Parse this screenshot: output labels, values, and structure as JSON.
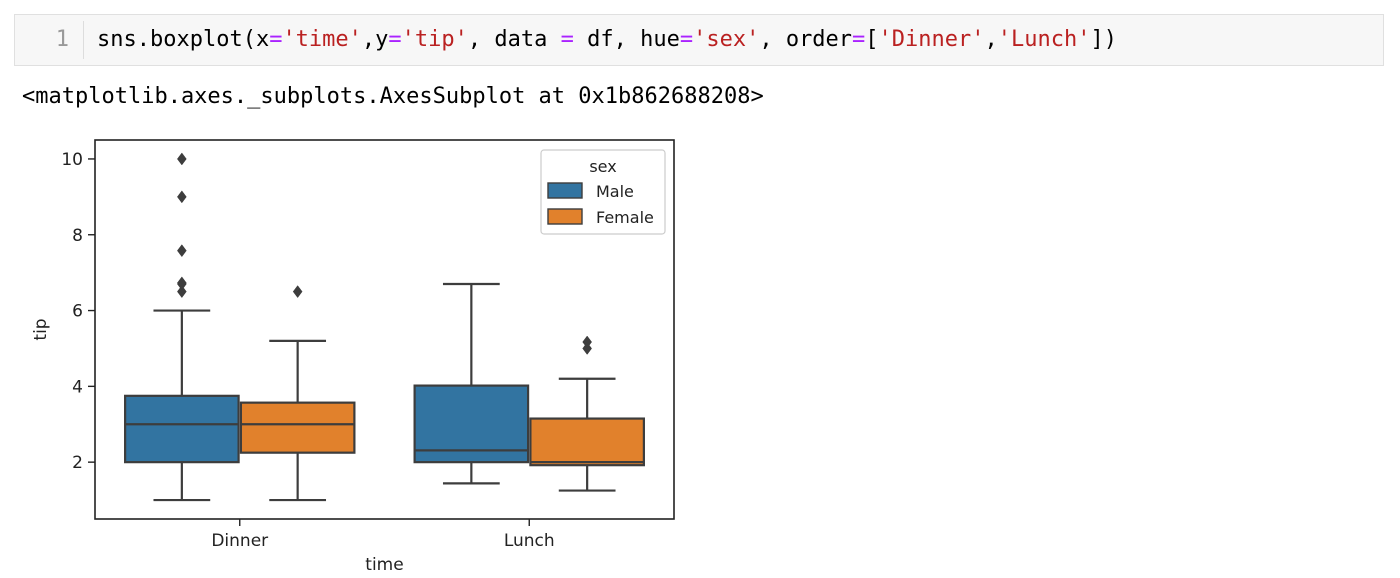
{
  "cell": {
    "line_number": "1",
    "code_tokens": [
      {
        "t": "sns.boxplot(x",
        "c": ""
      },
      {
        "t": "=",
        "c": "op"
      },
      {
        "t": "'time'",
        "c": "str"
      },
      {
        "t": ",y",
        "c": ""
      },
      {
        "t": "=",
        "c": "op"
      },
      {
        "t": "'tip'",
        "c": "str"
      },
      {
        "t": ", data ",
        "c": ""
      },
      {
        "t": "=",
        "c": "op"
      },
      {
        "t": " df, hue",
        "c": ""
      },
      {
        "t": "=",
        "c": "op"
      },
      {
        "t": "'sex'",
        "c": "str"
      },
      {
        "t": ", order",
        "c": ""
      },
      {
        "t": "=",
        "c": "op"
      },
      {
        "t": "[",
        "c": ""
      },
      {
        "t": "'Dinner'",
        "c": "str"
      },
      {
        "t": ",",
        "c": ""
      },
      {
        "t": "'Lunch'",
        "c": "str"
      },
      {
        "t": "])",
        "c": ""
      }
    ]
  },
  "output": {
    "text": "<matplotlib.axes._subplots.AxesSubplot at 0x1b862688208>"
  },
  "chart_data": {
    "type": "box",
    "xlabel": "time",
    "ylabel": "tip",
    "categories": [
      "Dinner",
      "Lunch"
    ],
    "ylim": [
      0.5,
      10.5
    ],
    "yticks": [
      2,
      4,
      6,
      8,
      10
    ],
    "legend": {
      "title": "sex",
      "placement": "top-right"
    },
    "series": [
      {
        "name": "Male",
        "color": "#3274a1",
        "boxes": [
          {
            "category": "Dinner",
            "whisker_low": 1.0,
            "q1": 2.0,
            "median": 3.0,
            "q3": 3.75,
            "whisker_high": 6.0,
            "outliers": [
              6.5,
              6.7,
              6.73,
              7.58,
              9.0,
              10.0
            ]
          },
          {
            "category": "Lunch",
            "whisker_low": 1.44,
            "q1": 2.0,
            "median": 2.31,
            "q3": 4.02,
            "whisker_high": 6.7,
            "outliers": []
          }
        ]
      },
      {
        "name": "Female",
        "color": "#e1812c",
        "boxes": [
          {
            "category": "Dinner",
            "whisker_low": 1.0,
            "q1": 2.25,
            "median": 3.0,
            "q3": 3.57,
            "whisker_high": 5.2,
            "outliers": [
              6.5
            ]
          },
          {
            "category": "Lunch",
            "whisker_low": 1.25,
            "q1": 1.92,
            "median": 2.0,
            "q3": 3.15,
            "whisker_high": 4.2,
            "outliers": [
              5.0,
              5.17
            ]
          }
        ]
      }
    ]
  }
}
